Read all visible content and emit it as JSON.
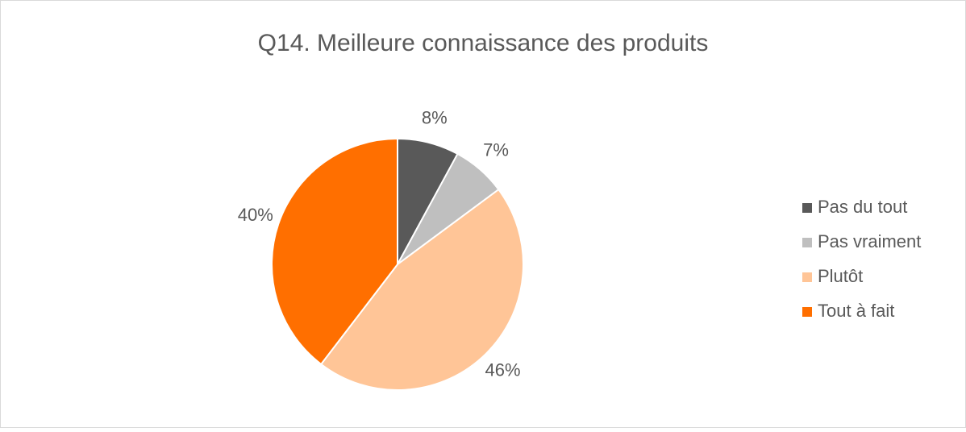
{
  "chart_data": {
    "type": "pie",
    "title": "Q14. Meilleure connaissance des produits",
    "categories": [
      "Pas du tout",
      "Pas vraiment",
      "Plutôt",
      "Tout à fait"
    ],
    "values": [
      8,
      7,
      46,
      40
    ],
    "value_labels": [
      "8%",
      "7%",
      "46%",
      "40%"
    ],
    "colors": [
      "#595959",
      "#bfbfbf",
      "#ffc597",
      "#ff6f00"
    ],
    "legend": "right"
  }
}
